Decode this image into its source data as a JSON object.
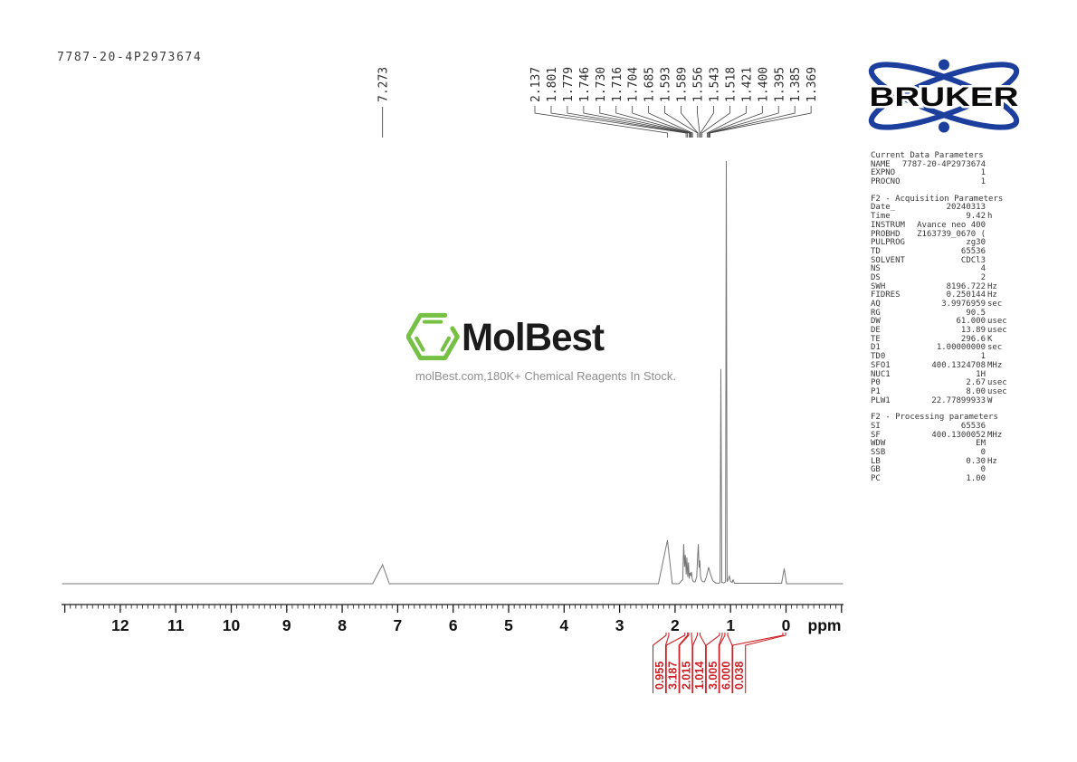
{
  "page": {
    "sample_id": "7787-20-4P2973674"
  },
  "watermark": {
    "brand": "MolBest",
    "tagline": "molBest.com,180K+ Chemical Reagents In Stock.",
    "hex_color": "#76c043",
    "text_color": "#1b1b1b",
    "tagline_color": "#8e8e8e"
  },
  "bruker": {
    "label": "BRUKER",
    "orbit_color": "#1c3e9c",
    "text_color": "#0a0a0a"
  },
  "params": {
    "sections": [
      {
        "title": "Current Data Parameters",
        "rows": [
          [
            "NAME",
            "7787-20-4P2973674",
            ""
          ],
          [
            "EXPNO",
            "1",
            ""
          ],
          [
            "PROCNO",
            "1",
            ""
          ]
        ]
      },
      {
        "title": "F2 - Acquisition Parameters",
        "rows": [
          [
            "Date_",
            "20240313",
            ""
          ],
          [
            "Time",
            "9.42",
            "h"
          ],
          [
            "INSTRUM",
            "Avance neo 400",
            ""
          ],
          [
            "PROBHD",
            "Z163739_0670 (",
            ""
          ],
          [
            "PULPROG",
            "zg30",
            ""
          ],
          [
            "TD",
            "65536",
            ""
          ],
          [
            "SOLVENT",
            "CDCl3",
            ""
          ],
          [
            "NS",
            "4",
            ""
          ],
          [
            "DS",
            "2",
            ""
          ],
          [
            "SWH",
            "8196.722",
            "Hz"
          ],
          [
            "FIDRES",
            "0.250144",
            "Hz"
          ],
          [
            "AQ",
            "3.9976959",
            "sec"
          ],
          [
            "RG",
            "90.5",
            ""
          ],
          [
            "DW",
            "61.000",
            "usec"
          ],
          [
            "DE",
            "13.89",
            "usec"
          ],
          [
            "TE",
            "296.6",
            "K"
          ],
          [
            "D1",
            "1.00000000",
            "sec"
          ],
          [
            "TD0",
            "1",
            ""
          ],
          [
            "SFO1",
            "400.1324708",
            "MHz"
          ],
          [
            "NUC1",
            "1H",
            ""
          ],
          [
            "P0",
            "2.67",
            "usec"
          ],
          [
            "P1",
            "8.00",
            "usec"
          ],
          [
            "PLW1",
            "22.77899933",
            "W"
          ]
        ]
      },
      {
        "title": "F2 - Processing parameters",
        "rows": [
          [
            "SI",
            "65536",
            ""
          ],
          [
            "SF",
            "400.1300052",
            "MHz"
          ],
          [
            "WDW",
            "EM",
            ""
          ],
          [
            "SSB",
            "0",
            ""
          ],
          [
            "LB",
            "0.30",
            "Hz"
          ],
          [
            "GB",
            "0",
            ""
          ],
          [
            "PC",
            "1.00",
            ""
          ]
        ]
      }
    ]
  },
  "chart_data": {
    "type": "line",
    "description": "1H NMR spectrum of sample 7787-20-4P2973674",
    "xlabel": "ppm",
    "x_axis": {
      "min": -1.05,
      "max": 13.05,
      "ticks": [
        12,
        11,
        10,
        9,
        8,
        7,
        6,
        5,
        4,
        3,
        2,
        1,
        0
      ],
      "minor_step": 0.1,
      "unit_label": "ppm"
    },
    "peak_labels": {
      "solvent": [
        "7.273"
      ],
      "cluster": [
        "2.137",
        "1.801",
        "1.779",
        "1.746",
        "1.730",
        "1.716",
        "1.704",
        "1.685",
        "1.593",
        "1.589",
        "1.556",
        "1.543",
        "1.518",
        "1.421",
        "1.400",
        "1.395",
        "1.385",
        "1.369"
      ]
    },
    "integrals": [
      {
        "value": "0.955",
        "ppm": 2.137
      },
      {
        "value": "3.187",
        "ppm": 1.8
      },
      {
        "value": "2.015",
        "ppm": 1.73
      },
      {
        "value": "1.014",
        "ppm": 1.575
      },
      {
        "value": "3.005",
        "ppm": 1.175
      },
      {
        "value": "6.000",
        "ppm": 1.077
      },
      {
        "value": "0.038",
        "ppm": 0.033
      }
    ],
    "integral_color": "#cc2127",
    "trace_color": "#767676",
    "axis_color": "#1a1a1a",
    "label_color": "#2e2e2e",
    "trace": [
      [
        13.05,
        0
      ],
      [
        7.45,
        0
      ],
      [
        7.273,
        0.045
      ],
      [
        7.15,
        0
      ],
      [
        2.3,
        0
      ],
      [
        2.137,
        0.103
      ],
      [
        2.05,
        0
      ],
      [
        1.93,
        0
      ],
      [
        1.862,
        0.01
      ],
      [
        1.845,
        0.094
      ],
      [
        1.828,
        0.04
      ],
      [
        1.815,
        0.068
      ],
      [
        1.8,
        0.022
      ],
      [
        1.788,
        0.062
      ],
      [
        1.772,
        0.016
      ],
      [
        1.758,
        0.05
      ],
      [
        1.745,
        0.012
      ],
      [
        1.732,
        0.026
      ],
      [
        1.718,
        0.02
      ],
      [
        1.705,
        0.028
      ],
      [
        1.69,
        0.011
      ],
      [
        1.67,
        0.005
      ],
      [
        1.64,
        0.004
      ],
      [
        1.61,
        0.016
      ],
      [
        1.595,
        0.058
      ],
      [
        1.58,
        0.094
      ],
      [
        1.567,
        0.038
      ],
      [
        1.555,
        0.055
      ],
      [
        1.542,
        0.018
      ],
      [
        1.528,
        0.01
      ],
      [
        1.505,
        0.005
      ],
      [
        1.47,
        0.004
      ],
      [
        1.435,
        0.016
      ],
      [
        1.395,
        0.039
      ],
      [
        1.36,
        0.022
      ],
      [
        1.32,
        0.007
      ],
      [
        1.27,
        0.002
      ],
      [
        1.21,
        0.001
      ],
      [
        1.19,
        0.003
      ],
      [
        1.175,
        0.508
      ],
      [
        1.158,
        0.003
      ],
      [
        1.12,
        0.002
      ],
      [
        1.092,
        0.004
      ],
      [
        1.077,
        1.0
      ],
      [
        1.062,
        0.005
      ],
      [
        1.04,
        0.01
      ],
      [
        1.022,
        0.018
      ],
      [
        1.0,
        0.005
      ],
      [
        0.97,
        0.003
      ],
      [
        0.954,
        0.009
      ],
      [
        0.93,
        0.001
      ],
      [
        0.6,
        0.001
      ],
      [
        0.08,
        0.001
      ],
      [
        0.033,
        0.036
      ],
      [
        -0.01,
        0
      ],
      [
        -1.03,
        0
      ]
    ]
  }
}
